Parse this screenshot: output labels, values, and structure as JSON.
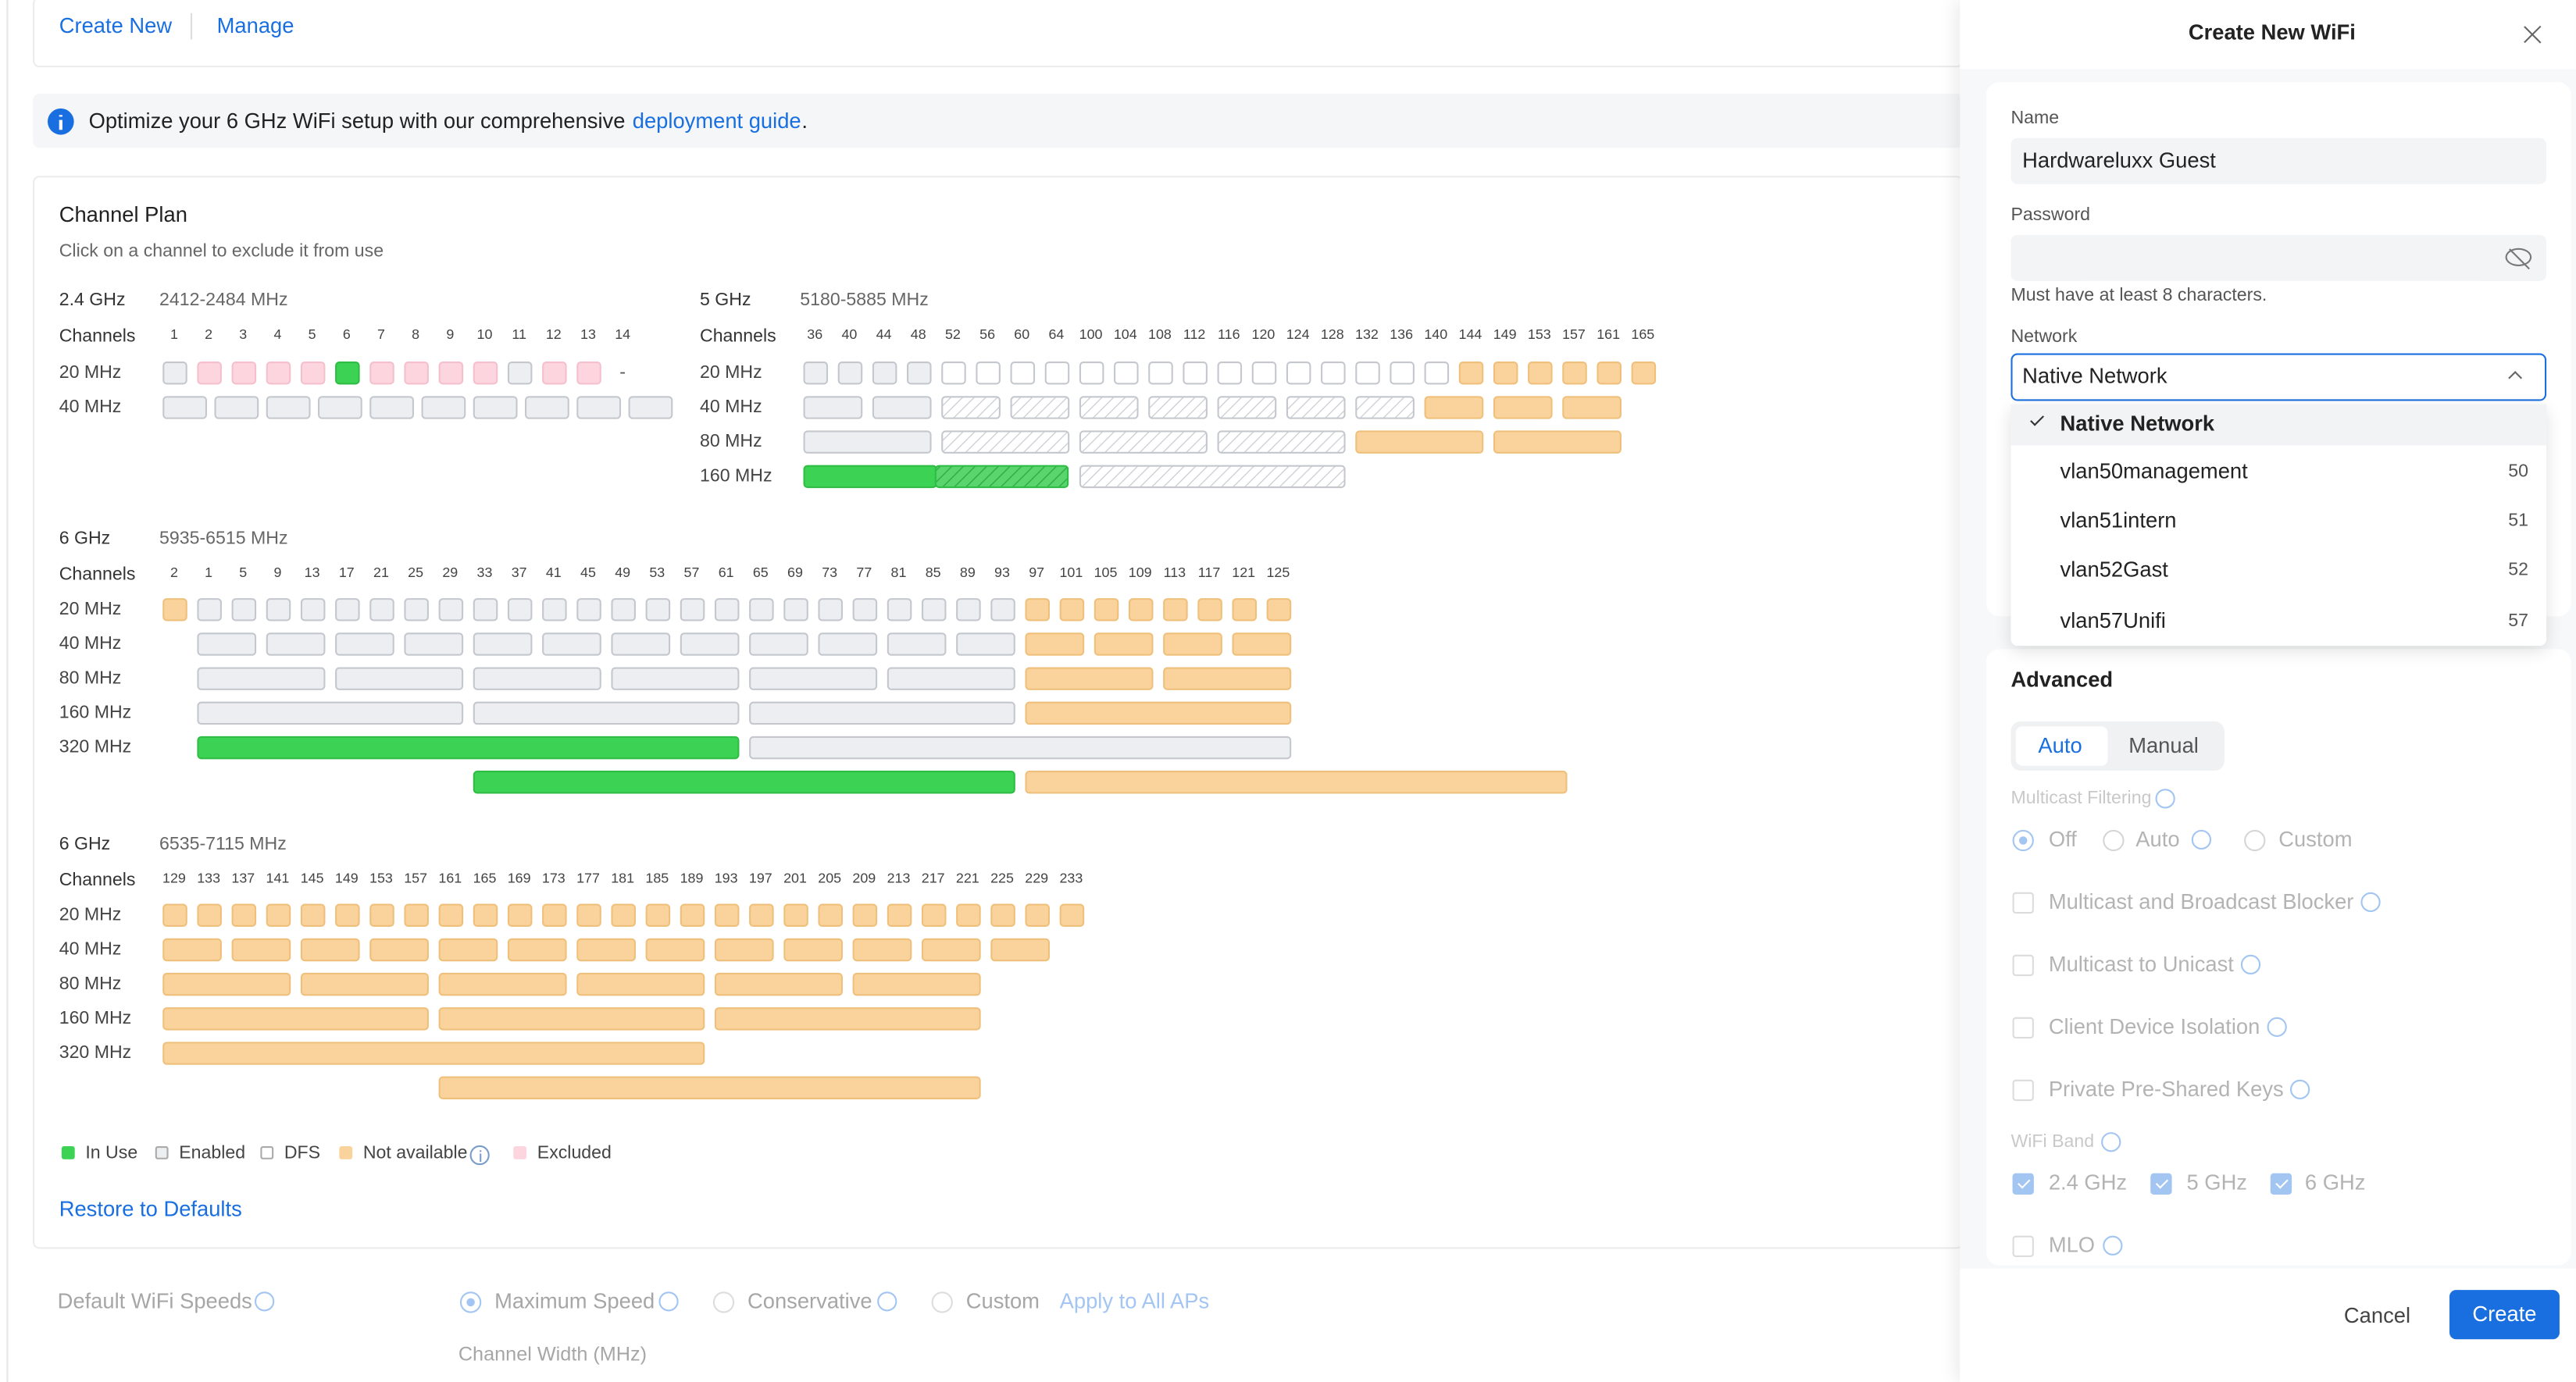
{
  "tabs": [
    "Create New",
    "Manage"
  ],
  "banner": {
    "text": "Optimize your 6 GHz WiFi setup with our comprehensive",
    "link": "deployment guide",
    "end": "."
  },
  "channel_plan": {
    "title": "Channel Plan",
    "subtitle": "Click on a channel to exclude it from use",
    "channels_label": "Channels",
    "bands": [
      {
        "name": "2.4 GHz",
        "range": "2412-2484 MHz",
        "channels": [
          1,
          2,
          3,
          4,
          5,
          6,
          7,
          8,
          9,
          10,
          11,
          12,
          13,
          14
        ],
        "widths": [
          "20 MHz",
          "40 MHz"
        ],
        "unavailable_mark": "-"
      },
      {
        "name": "5 GHz",
        "range": "5180-5885 MHz",
        "channels": [
          36,
          40,
          44,
          48,
          52,
          56,
          60,
          64,
          100,
          104,
          108,
          112,
          116,
          120,
          124,
          128,
          132,
          136,
          140,
          144,
          149,
          153,
          157,
          161,
          165
        ],
        "widths": [
          "20 MHz",
          "40 MHz",
          "80 MHz",
          "160 MHz"
        ]
      },
      {
        "name": "6 GHz",
        "range": "5935-6515 MHz",
        "channels": [
          2,
          1,
          5,
          9,
          13,
          17,
          21,
          25,
          29,
          33,
          37,
          41,
          45,
          49,
          53,
          57,
          61,
          65,
          69,
          73,
          77,
          81,
          85,
          89,
          93,
          97,
          101,
          105,
          109,
          113,
          117,
          121,
          125
        ],
        "widths": [
          "20 MHz",
          "40 MHz",
          "80 MHz",
          "160 MHz",
          "320 MHz"
        ]
      },
      {
        "name": "6 GHz",
        "range": "6535-7115 MHz",
        "channels": [
          129,
          133,
          137,
          141,
          145,
          149,
          153,
          157,
          161,
          165,
          169,
          173,
          177,
          181,
          185,
          189,
          193,
          197,
          201,
          205,
          209,
          213,
          217,
          221,
          225,
          229,
          233
        ],
        "widths": [
          "20 MHz",
          "40 MHz",
          "80 MHz",
          "160 MHz",
          "320 MHz"
        ]
      }
    ],
    "legend": [
      "In Use",
      "Enabled",
      "DFS",
      "Not available",
      "Excluded"
    ],
    "restore": "Restore to Defaults"
  },
  "wifi_speeds": {
    "label": "Default WiFi Speeds",
    "options": [
      "Maximum Speed",
      "Conservative",
      "Custom"
    ],
    "apply": "Apply to All APs",
    "channel_width": "Channel Width (MHz)"
  },
  "drawer": {
    "title": "Create New WiFi",
    "name": {
      "label": "Name",
      "value": "Hardwareluxx Guest"
    },
    "password": {
      "label": "Password",
      "hint": "Must have at least 8 characters."
    },
    "network": {
      "label": "Network",
      "value": "Native Network",
      "options": [
        {
          "name": "Native Network"
        },
        {
          "name": "vlan50management",
          "vlan": 50
        },
        {
          "name": "vlan51intern",
          "vlan": 51
        },
        {
          "name": "vlan52Gast",
          "vlan": 52
        },
        {
          "name": "vlan57Unifi",
          "vlan": 57
        }
      ]
    },
    "advanced": "Advanced",
    "modes": [
      "Auto",
      "Manual"
    ],
    "multicast_filtering": {
      "label": "Multicast Filtering",
      "options": [
        "Off",
        "Auto",
        "Custom"
      ]
    },
    "toggles": [
      "Multicast and Broadcast Blocker",
      "Multicast to Unicast",
      "Client Device Isolation",
      "Private Pre-Shared Keys"
    ],
    "wifi_band": {
      "label": "WiFi Band",
      "options": [
        "2.4 GHz",
        "5 GHz",
        "6 GHz"
      ]
    },
    "mlo": "MLO",
    "cancel": "Cancel",
    "create": "Create"
  }
}
